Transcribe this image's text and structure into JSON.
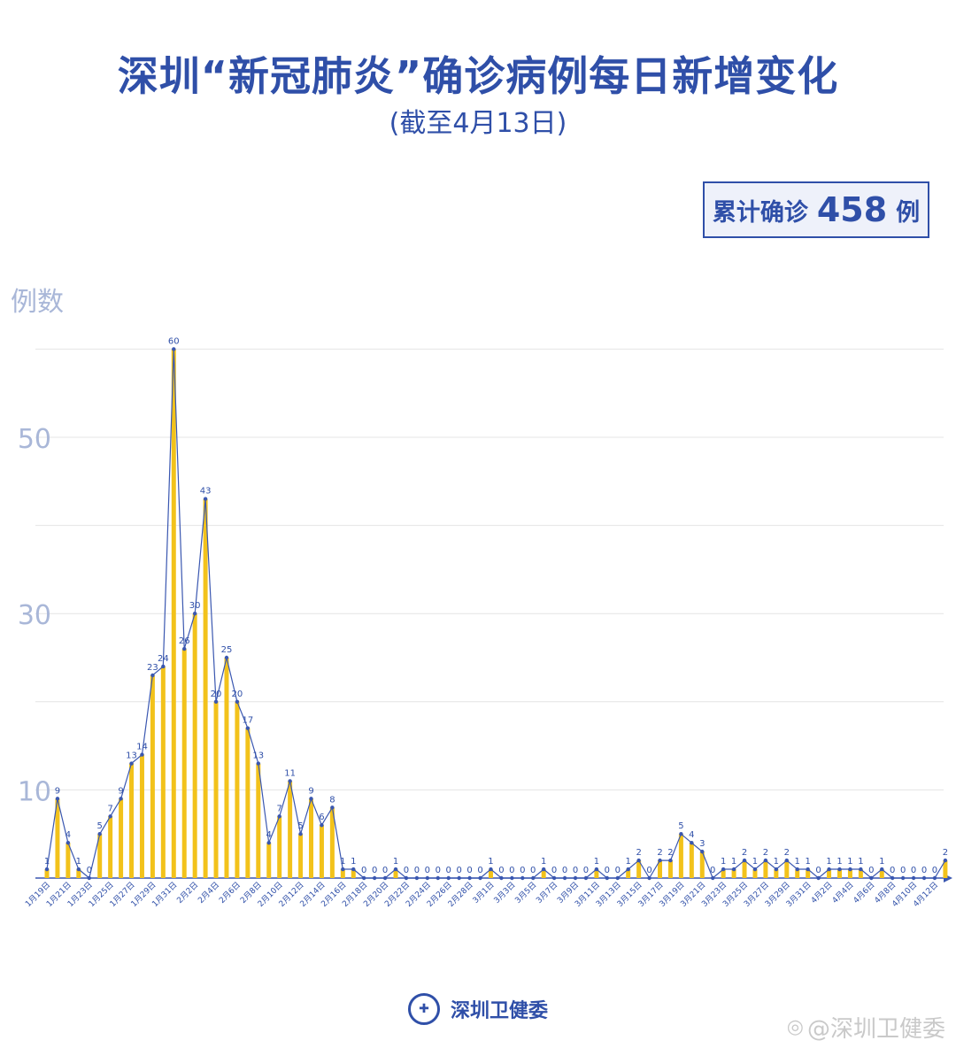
{
  "header": {
    "title": "深圳“新冠肺炎”确诊病例每日新增变化",
    "subtitle": "(截至4月13日)"
  },
  "total": {
    "label": "累计确诊",
    "value": "458",
    "unit": "例"
  },
  "footer": {
    "org": "深圳卫健委"
  },
  "watermark": {
    "text": "@深圳卫健委",
    "icon": "weibo-icon"
  },
  "colors": {
    "bar": "#f2c21b",
    "line": "#3a57b0",
    "label": "#2f4fa8",
    "axis_tick": "#a9b7d8",
    "grid": "#e4e4e4"
  },
  "chart_data": {
    "type": "bar",
    "title": "深圳“新冠肺炎”确诊病例每日新增变化",
    "subtitle": "(截至4月13日)",
    "ylabel": "例数",
    "xlabel": "",
    "ylim": [
      0,
      60
    ],
    "yticks": [
      10,
      30,
      50
    ],
    "grid": true,
    "categories": [
      "1月19日",
      "1月20日",
      "1月21日",
      "1月22日",
      "1月23日",
      "1月24日",
      "1月25日",
      "1月26日",
      "1月27日",
      "1月28日",
      "1月29日",
      "1月30日",
      "1月31日",
      "2月1日",
      "2月2日",
      "2月3日",
      "2月4日",
      "2月5日",
      "2月6日",
      "2月7日",
      "2月8日",
      "2月9日",
      "2月10日",
      "2月11日",
      "2月12日",
      "2月13日",
      "2月14日",
      "2月15日",
      "2月16日",
      "2月17日",
      "2月18日",
      "2月19日",
      "2月20日",
      "2月21日",
      "2月22日",
      "2月23日",
      "2月24日",
      "2月25日",
      "2月26日",
      "2月27日",
      "2月28日",
      "2月29日",
      "3月1日",
      "3月2日",
      "3月3日",
      "3月4日",
      "3月5日",
      "3月6日",
      "3月7日",
      "3月8日",
      "3月9日",
      "3月10日",
      "3月11日",
      "3月12日",
      "3月13日",
      "3月14日",
      "3月15日",
      "3月16日",
      "3月17日",
      "3月18日",
      "3月19日",
      "3月20日",
      "3月21日",
      "3月22日",
      "3月23日",
      "3月24日",
      "3月25日",
      "3月26日",
      "3月27日",
      "3月28日",
      "3月29日",
      "3月30日",
      "3月31日",
      "4月1日",
      "4月2日",
      "4月3日",
      "4月4日",
      "4月5日",
      "4月6日",
      "4月7日",
      "4月8日",
      "4月9日",
      "4月10日",
      "4月11日",
      "4月12日",
      "4月13日"
    ],
    "xtick_labels": [
      "1月19日",
      "1月21日",
      "1月23日",
      "1月25日",
      "1月27日",
      "1月29日",
      "1月31日",
      "2月2日",
      "2月4日",
      "2月6日",
      "2月8日",
      "2月10日",
      "2月12日",
      "2月14日",
      "2月16日",
      "2月18日",
      "2月20日",
      "2月22日",
      "2月24日",
      "2月26日",
      "2月28日",
      "3月1日",
      "3月3日",
      "3月5日",
      "3月7日",
      "3月9日",
      "3月11日",
      "3月13日",
      "3月15日",
      "3月17日",
      "3月19日",
      "3月21日",
      "3月23日",
      "3月25日",
      "3月27日",
      "3月29日",
      "3月31日",
      "4月2日",
      "4月4日",
      "4月6日",
      "4月8日",
      "4月10日",
      "4月12日"
    ],
    "values": [
      1,
      9,
      4,
      1,
      0,
      5,
      7,
      9,
      13,
      14,
      23,
      24,
      60,
      26,
      30,
      43,
      20,
      25,
      20,
      17,
      13,
      4,
      7,
      11,
      5,
      9,
      6,
      8,
      1,
      1,
      0,
      0,
      0,
      1,
      0,
      0,
      0,
      0,
      0,
      0,
      0,
      0,
      1,
      0,
      0,
      0,
      0,
      1,
      0,
      0,
      0,
      0,
      1,
      0,
      0,
      1,
      2,
      0,
      2,
      2,
      5,
      4,
      3,
      0,
      1,
      1,
      2,
      1,
      2,
      1,
      2,
      1,
      1,
      0,
      1,
      1,
      1,
      1,
      0,
      1,
      0,
      0,
      0,
      0,
      0,
      2
    ]
  }
}
